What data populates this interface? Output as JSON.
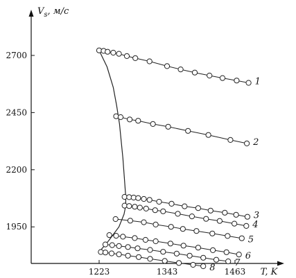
{
  "chart_data": {
    "type": "scatter",
    "title": "",
    "ylabel": "Vs, м/с",
    "ylabel_main": "V",
    "ylabel_sub": "s",
    "ylabel_unit": ", м/с",
    "xlabel": "T, K",
    "xlim": [
      1103,
      1550
    ],
    "ylim": [
      1790,
      2900
    ],
    "x_ticks": [
      1223,
      1343,
      1463
    ],
    "y_ticks": [
      1950,
      2200,
      2450,
      2700
    ],
    "grid": false,
    "series": [
      {
        "name": "1",
        "x": [
          1223,
          1231,
          1238,
          1248,
          1258,
          1272,
          1287,
          1312,
          1343,
          1367,
          1392,
          1418,
          1441,
          1466,
          1487
        ],
        "y": [
          2722,
          2720,
          2716,
          2712,
          2707,
          2697,
          2688,
          2674,
          2653,
          2639,
          2625,
          2612,
          2601,
          2590,
          2580
        ]
      },
      {
        "name": "2",
        "x": [
          1253,
          1261,
          1277,
          1292,
          1318,
          1345,
          1380,
          1416,
          1455,
          1484
        ],
        "y": [
          2434,
          2430,
          2420,
          2414,
          2400,
          2388,
          2370,
          2352,
          2330,
          2315
        ]
      },
      {
        "name": "3",
        "x": [
          1268,
          1276,
          1284,
          1292,
          1302,
          1312,
          1329,
          1351,
          1374,
          1398,
          1420,
          1445,
          1465,
          1485
        ],
        "y": [
          2081,
          2080,
          2078,
          2076,
          2072,
          2068,
          2060,
          2051,
          2040,
          2032,
          2021,
          2012,
          2003,
          1994
        ]
      },
      {
        "name": "4",
        "x": [
          1268,
          1276,
          1286,
          1295,
          1306,
          1322,
          1336,
          1362,
          1387,
          1412,
          1436,
          1462,
          1483
        ],
        "y": [
          2043,
          2041,
          2038,
          2034,
          2030,
          2023,
          2018,
          2007,
          1996,
          1985,
          1976,
          1964,
          1954
        ]
      },
      {
        "name": "5",
        "x": [
          1252,
          1278,
          1302,
          1323,
          1350,
          1371,
          1395,
          1423,
          1450,
          1475
        ],
        "y": [
          1984,
          1977,
          1970,
          1960,
          1950,
          1941,
          1932,
          1921,
          1910,
          1900
        ]
      },
      {
        "name": "6",
        "x": [
          1241,
          1253,
          1265,
          1286,
          1305,
          1323,
          1349,
          1372,
          1398,
          1424,
          1448,
          1470
        ],
        "y": [
          1914,
          1911,
          1907,
          1901,
          1893,
          1887,
          1877,
          1868,
          1859,
          1848,
          1839,
          1829
        ]
      },
      {
        "name": "7",
        "x": [
          1234,
          1246,
          1258,
          1274,
          1291,
          1313,
          1336,
          1360,
          1383,
          1407,
          1430,
          1451
        ],
        "y": [
          1873,
          1870,
          1866,
          1862,
          1856,
          1849,
          1841,
          1833,
          1824,
          1815,
          1806,
          1799
        ]
      },
      {
        "name": "8",
        "x": [
          1226,
          1234,
          1245,
          1258,
          1274,
          1293,
          1313,
          1339,
          1364,
          1389,
          1407
        ],
        "y": [
          1840,
          1838,
          1834,
          1830,
          1824,
          1818,
          1810,
          1801,
          1792,
          1784,
          1778
        ]
      }
    ],
    "boundary_curve": {
      "x": [
        1223,
        1237,
        1248,
        1254,
        1259,
        1265,
        1270,
        1270,
        1267,
        1258,
        1240,
        1223
      ],
      "y": [
        2722,
        2650,
        2560,
        2480,
        2400,
        2250,
        2081,
        2043,
        2005,
        1950,
        1890,
        1840
      ]
    }
  }
}
